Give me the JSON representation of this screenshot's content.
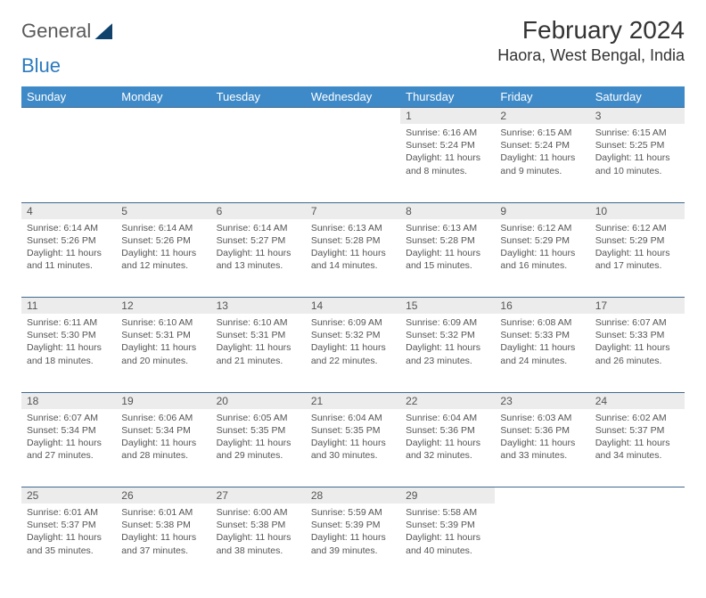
{
  "logo": {
    "part1": "General",
    "part2": "Blue"
  },
  "title": "February 2024",
  "location": "Haora, West Bengal, India",
  "colors": {
    "header_bg": "#3e8ac8",
    "header_text": "#ffffff",
    "daynum_bg": "#ececec",
    "border": "#3e6a8f",
    "text": "#555555",
    "logo_gray": "#5a5a5a",
    "logo_blue": "#2b7bbf"
  },
  "weekdays": [
    "Sunday",
    "Monday",
    "Tuesday",
    "Wednesday",
    "Thursday",
    "Friday",
    "Saturday"
  ],
  "weeks": [
    [
      null,
      null,
      null,
      null,
      {
        "d": "1",
        "sr": "6:16 AM",
        "ss": "5:24 PM",
        "dl": "11 hours and 8 minutes."
      },
      {
        "d": "2",
        "sr": "6:15 AM",
        "ss": "5:24 PM",
        "dl": "11 hours and 9 minutes."
      },
      {
        "d": "3",
        "sr": "6:15 AM",
        "ss": "5:25 PM",
        "dl": "11 hours and 10 minutes."
      }
    ],
    [
      {
        "d": "4",
        "sr": "6:14 AM",
        "ss": "5:26 PM",
        "dl": "11 hours and 11 minutes."
      },
      {
        "d": "5",
        "sr": "6:14 AM",
        "ss": "5:26 PM",
        "dl": "11 hours and 12 minutes."
      },
      {
        "d": "6",
        "sr": "6:14 AM",
        "ss": "5:27 PM",
        "dl": "11 hours and 13 minutes."
      },
      {
        "d": "7",
        "sr": "6:13 AM",
        "ss": "5:28 PM",
        "dl": "11 hours and 14 minutes."
      },
      {
        "d": "8",
        "sr": "6:13 AM",
        "ss": "5:28 PM",
        "dl": "11 hours and 15 minutes."
      },
      {
        "d": "9",
        "sr": "6:12 AM",
        "ss": "5:29 PM",
        "dl": "11 hours and 16 minutes."
      },
      {
        "d": "10",
        "sr": "6:12 AM",
        "ss": "5:29 PM",
        "dl": "11 hours and 17 minutes."
      }
    ],
    [
      {
        "d": "11",
        "sr": "6:11 AM",
        "ss": "5:30 PM",
        "dl": "11 hours and 18 minutes."
      },
      {
        "d": "12",
        "sr": "6:10 AM",
        "ss": "5:31 PM",
        "dl": "11 hours and 20 minutes."
      },
      {
        "d": "13",
        "sr": "6:10 AM",
        "ss": "5:31 PM",
        "dl": "11 hours and 21 minutes."
      },
      {
        "d": "14",
        "sr": "6:09 AM",
        "ss": "5:32 PM",
        "dl": "11 hours and 22 minutes."
      },
      {
        "d": "15",
        "sr": "6:09 AM",
        "ss": "5:32 PM",
        "dl": "11 hours and 23 minutes."
      },
      {
        "d": "16",
        "sr": "6:08 AM",
        "ss": "5:33 PM",
        "dl": "11 hours and 24 minutes."
      },
      {
        "d": "17",
        "sr": "6:07 AM",
        "ss": "5:33 PM",
        "dl": "11 hours and 26 minutes."
      }
    ],
    [
      {
        "d": "18",
        "sr": "6:07 AM",
        "ss": "5:34 PM",
        "dl": "11 hours and 27 minutes."
      },
      {
        "d": "19",
        "sr": "6:06 AM",
        "ss": "5:34 PM",
        "dl": "11 hours and 28 minutes."
      },
      {
        "d": "20",
        "sr": "6:05 AM",
        "ss": "5:35 PM",
        "dl": "11 hours and 29 minutes."
      },
      {
        "d": "21",
        "sr": "6:04 AM",
        "ss": "5:35 PM",
        "dl": "11 hours and 30 minutes."
      },
      {
        "d": "22",
        "sr": "6:04 AM",
        "ss": "5:36 PM",
        "dl": "11 hours and 32 minutes."
      },
      {
        "d": "23",
        "sr": "6:03 AM",
        "ss": "5:36 PM",
        "dl": "11 hours and 33 minutes."
      },
      {
        "d": "24",
        "sr": "6:02 AM",
        "ss": "5:37 PM",
        "dl": "11 hours and 34 minutes."
      }
    ],
    [
      {
        "d": "25",
        "sr": "6:01 AM",
        "ss": "5:37 PM",
        "dl": "11 hours and 35 minutes."
      },
      {
        "d": "26",
        "sr": "6:01 AM",
        "ss": "5:38 PM",
        "dl": "11 hours and 37 minutes."
      },
      {
        "d": "27",
        "sr": "6:00 AM",
        "ss": "5:38 PM",
        "dl": "11 hours and 38 minutes."
      },
      {
        "d": "28",
        "sr": "5:59 AM",
        "ss": "5:39 PM",
        "dl": "11 hours and 39 minutes."
      },
      {
        "d": "29",
        "sr": "5:58 AM",
        "ss": "5:39 PM",
        "dl": "11 hours and 40 minutes."
      },
      null,
      null
    ]
  ],
  "labels": {
    "sunrise": "Sunrise:",
    "sunset": "Sunset:",
    "daylight": "Daylight:"
  }
}
